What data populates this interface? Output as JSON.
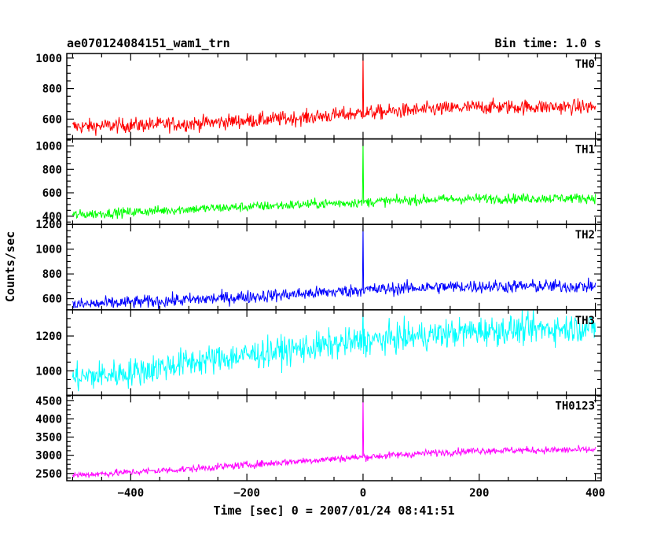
{
  "header": {
    "title": "ae070124084151_wam1_trn",
    "bin_time": "Bin time: 1.0 s"
  },
  "chart_data": {
    "type": "line",
    "xlabel": "Time [sec] 0 = 2007/01/24 08:41:51",
    "ylabel": "Counts/sec",
    "xlim": [
      -510,
      410
    ],
    "x_ticks": [
      -400,
      -200,
      0,
      200,
      400
    ],
    "panels": [
      {
        "name": "TH0",
        "color": "#ff0000",
        "ylim": [
          470,
          1030
        ],
        "y_ticks": [
          600,
          800,
          1000
        ],
        "trend": [
          [
            -500,
            550
          ],
          [
            -300,
            570
          ],
          [
            -100,
            610
          ],
          [
            0,
            640
          ],
          [
            100,
            660
          ],
          [
            200,
            680
          ],
          [
            400,
            680
          ]
        ],
        "noise": 35,
        "spike": {
          "x": 0,
          "y": 1030
        }
      },
      {
        "name": "TH1",
        "color": "#00ff00",
        "ylim": [
          330,
          1060
        ],
        "y_ticks": [
          400,
          600,
          800,
          1000
        ],
        "trend": [
          [
            -500,
            410
          ],
          [
            -300,
            460
          ],
          [
            -100,
            500
          ],
          [
            0,
            520
          ],
          [
            100,
            540
          ],
          [
            200,
            550
          ],
          [
            400,
            555
          ]
        ],
        "noise": 30,
        "spike": {
          "x": 0,
          "y": 1050
        }
      },
      {
        "name": "TH2",
        "color": "#0000ff",
        "ylim": [
          510,
          1200
        ],
        "y_ticks": [
          600,
          800,
          1000,
          1200
        ],
        "trend": [
          [
            -500,
            550
          ],
          [
            -300,
            590
          ],
          [
            -100,
            640
          ],
          [
            0,
            670
          ],
          [
            100,
            690
          ],
          [
            200,
            700
          ],
          [
            400,
            700
          ]
        ],
        "noise": 38,
        "spike": {
          "x": 0,
          "y": 1200
        }
      },
      {
        "name": "TH3",
        "color": "#00ffff",
        "ylim": [
          860,
          1350
        ],
        "y_ticks": [
          1000,
          1200
        ],
        "trend": [
          [
            -500,
            960
          ],
          [
            -400,
            990
          ],
          [
            -300,
            1050
          ],
          [
            -200,
            1090
          ],
          [
            -100,
            1130
          ],
          [
            0,
            1170
          ],
          [
            100,
            1200
          ],
          [
            200,
            1230
          ],
          [
            400,
            1250
          ]
        ],
        "noise": 60,
        "spike": {
          "x": 0,
          "y": 1350
        }
      },
      {
        "name": "TH0123",
        "color": "#ff00ff",
        "ylim": [
          2300,
          4650
        ],
        "y_ticks": [
          2500,
          3000,
          3500,
          4000,
          4500
        ],
        "trend": [
          [
            -500,
            2450
          ],
          [
            -300,
            2620
          ],
          [
            -100,
            2850
          ],
          [
            0,
            2950
          ],
          [
            100,
            3050
          ],
          [
            200,
            3130
          ],
          [
            400,
            3150
          ]
        ],
        "noise": 70,
        "spike": {
          "x": 0,
          "y": 4620
        }
      }
    ]
  }
}
